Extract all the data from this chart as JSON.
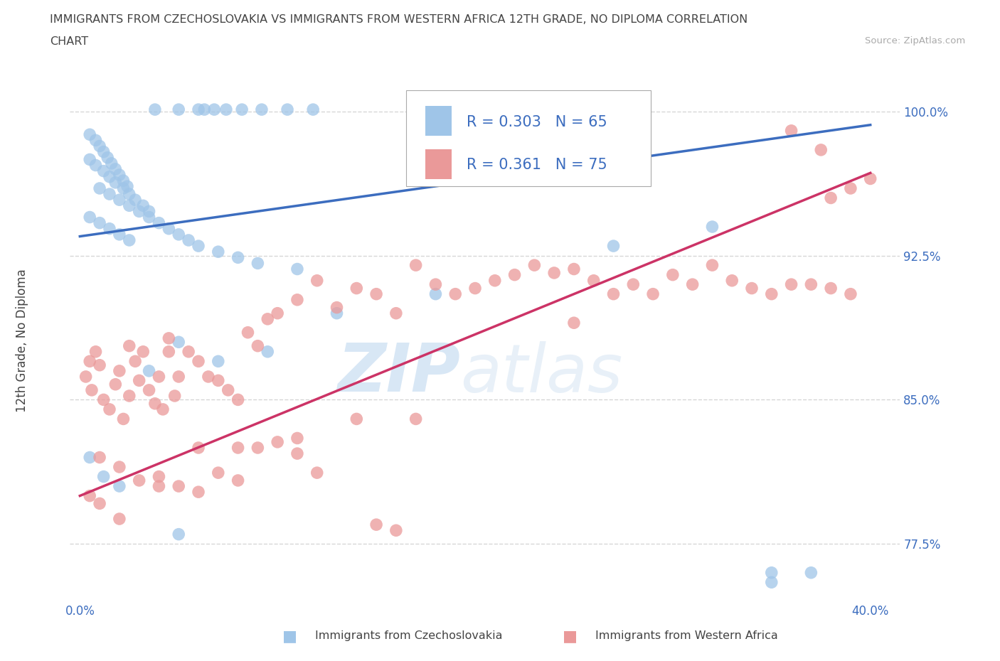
{
  "title_line1": "IMMIGRANTS FROM CZECHOSLOVAKIA VS IMMIGRANTS FROM WESTERN AFRICA 12TH GRADE, NO DIPLOMA CORRELATION",
  "title_line2": "CHART",
  "source": "Source: ZipAtlas.com",
  "ylabel": "12th Grade, No Diploma",
  "xlim": [
    -0.005,
    0.415
  ],
  "ylim": [
    0.745,
    1.015
  ],
  "xtick_positions": [
    0.0,
    0.05,
    0.1,
    0.15,
    0.2,
    0.25,
    0.3,
    0.35,
    0.4
  ],
  "xtick_labels": [
    "0.0%",
    "",
    "",
    "",
    "",
    "",
    "",
    "",
    "40.0%"
  ],
  "ytick_positions": [
    0.775,
    0.85,
    0.925,
    1.0
  ],
  "ytick_labels": [
    "77.5%",
    "85.0%",
    "92.5%",
    "100.0%"
  ],
  "color_blue": "#9fc5e8",
  "color_pink": "#ea9999",
  "trend_blue": "#3c6dbf",
  "trend_pink": "#cc3366",
  "R_blue": 0.303,
  "N_blue": 65,
  "R_pink": 0.361,
  "N_pink": 75,
  "legend_label_blue": "Immigrants from Czechoslovakia",
  "legend_label_pink": "Immigrants from Western Africa",
  "background_color": "#ffffff",
  "grid_color": "#cccccc",
  "tick_color": "#3c6dbf",
  "title_color": "#444444",
  "blue_trend_x0": 0.0,
  "blue_trend_y0": 0.935,
  "blue_trend_x1": 0.4,
  "blue_trend_y1": 0.993,
  "pink_trend_x0": 0.0,
  "pink_trend_y0": 0.8,
  "pink_trend_x1": 0.4,
  "pink_trend_y1": 0.968
}
